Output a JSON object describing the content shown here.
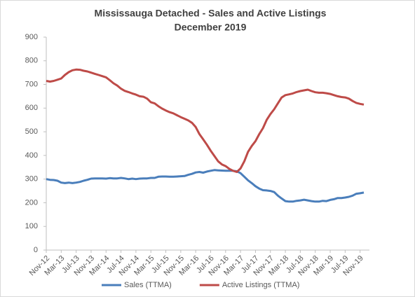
{
  "chart_data": {
    "type": "line",
    "title": "Mississauga Detached - Sales and Active Listings",
    "subtitle": "December 2019",
    "categories": [
      "Nov-12",
      null,
      null,
      null,
      "Mar-13",
      null,
      null,
      null,
      "Jul-13",
      null,
      null,
      null,
      "Nov-13",
      null,
      null,
      null,
      "Mar-14",
      null,
      null,
      null,
      "Jul-14",
      null,
      null,
      null,
      "Nov-14",
      null,
      null,
      null,
      "Mar-15",
      null,
      null,
      null,
      "Jul-15",
      null,
      null,
      null,
      "Nov-15",
      null,
      null,
      null,
      "Mar-16",
      null,
      null,
      null,
      "Jul-16",
      null,
      null,
      null,
      "Nov-16",
      null,
      null,
      null,
      "Mar-17",
      null,
      null,
      null,
      "Jul-17",
      null,
      null,
      null,
      "Nov-17",
      null,
      null,
      null,
      "Mar-18",
      null,
      null,
      null,
      "Jul-18",
      null,
      null,
      null,
      "Nov-18",
      null,
      null,
      null,
      "Mar-19",
      null,
      null,
      null,
      "Jul-19",
      null,
      null,
      null,
      "Nov-19",
      null
    ],
    "series": [
      {
        "name": "Sales (TTMA)",
        "color": "#4a7ebb",
        "values": [
          300,
          297,
          296,
          293,
          285,
          283,
          285,
          283,
          285,
          288,
          293,
          297,
          302,
          303,
          303,
          303,
          302,
          304,
          303,
          303,
          305,
          303,
          300,
          302,
          300,
          302,
          303,
          303,
          305,
          305,
          310,
          311,
          311,
          310,
          310,
          311,
          312,
          313,
          318,
          322,
          328,
          330,
          327,
          332,
          335,
          338,
          337,
          336,
          335,
          335,
          335,
          333,
          325,
          310,
          295,
          283,
          270,
          260,
          253,
          252,
          250,
          245,
          230,
          218,
          207,
          205,
          205,
          208,
          210,
          213,
          210,
          207,
          205,
          205,
          208,
          207,
          212,
          215,
          220,
          220,
          222,
          225,
          230,
          238,
          240,
          243
        ]
      },
      {
        "name": "Active Listings (TTMA)",
        "color": "#be4b48",
        "values": [
          715,
          712,
          715,
          720,
          725,
          740,
          752,
          760,
          763,
          762,
          758,
          755,
          750,
          745,
          740,
          735,
          730,
          718,
          705,
          695,
          682,
          673,
          668,
          662,
          657,
          650,
          648,
          640,
          625,
          620,
          608,
          598,
          590,
          583,
          578,
          570,
          562,
          555,
          548,
          538,
          520,
          490,
          468,
          445,
          420,
          398,
          375,
          362,
          355,
          343,
          335,
          330,
          345,
          375,
          415,
          440,
          460,
          490,
          515,
          550,
          575,
          595,
          620,
          645,
          655,
          658,
          662,
          668,
          672,
          675,
          678,
          672,
          667,
          665,
          665,
          663,
          660,
          655,
          650,
          647,
          645,
          640,
          630,
          622,
          618,
          615
        ]
      }
    ],
    "ylim": [
      0,
      900
    ],
    "yticks": [
      0,
      100,
      200,
      300,
      400,
      500,
      600,
      700,
      800,
      900
    ],
    "grid": false,
    "legend": "bottom"
  }
}
